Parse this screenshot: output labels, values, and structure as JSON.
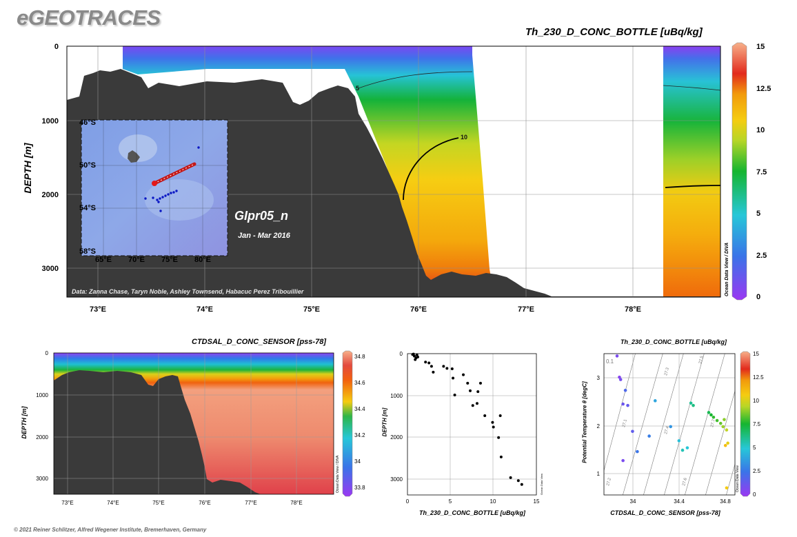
{
  "brand": "eGEOTRACES",
  "footer": "© 2021 Reiner Schlitzer, Alfred Wegener Institute, Bremerhaven, Germany",
  "colors": {
    "land": "#3a3a3a",
    "grid": "#9a9a9a"
  },
  "chart_data": [
    {
      "type": "heatmap",
      "title": "Th_230_D_CONC_BOTTLE [uBq/kg]",
      "ylabel": "DEPTH [m]",
      "xlabel": "",
      "x_ticks": [
        "73°E",
        "74°E",
        "75°E",
        "76°E",
        "77°E",
        "78°E"
      ],
      "xlim": [
        72.7,
        78.85
      ],
      "ylim": [
        3400,
        0
      ],
      "y_ticks": [
        "0",
        "1000",
        "2000",
        "3000"
      ],
      "colorbar": {
        "ticks": [
          "15",
          "12.5",
          "10",
          "7.5",
          "5",
          "2.5",
          "0"
        ],
        "range": [
          0,
          15
        ],
        "label": "Ocean Data View / DIVA"
      },
      "contours": [
        "5",
        "10"
      ],
      "section_label": "GIpr05_n",
      "section_dates": "Jan - Mar 2016",
      "credits": "Data: Zanna Chase, Taryn Noble, Ashley Townsend, Habacuc Perez Tribouillier",
      "inset_map": {
        "lat_ticks": [
          "46°S",
          "50°S",
          "54°S",
          "58°S"
        ],
        "lon_ticks": [
          "65°E",
          "70°E",
          "75°E",
          "80°E"
        ]
      }
    },
    {
      "type": "heatmap",
      "title": "CTDSAL_D_CONC_SENSOR [pss-78]",
      "ylabel": "DEPTH [m]",
      "x_ticks": [
        "73°E",
        "74°E",
        "75°E",
        "76°E",
        "77°E",
        "78°E"
      ],
      "y_ticks": [
        "0",
        "1000",
        "2000",
        "3000"
      ],
      "colorbar": {
        "ticks": [
          "34.8",
          "34.6",
          "34.4",
          "34.2",
          "34",
          "33.8"
        ],
        "range": [
          33.7,
          34.85
        ],
        "label": "Ocean Data View / DIVA"
      }
    },
    {
      "type": "scatter",
      "xlabel": "Th_230_D_CONC_BOTTLE [uBq/kg]",
      "ylabel": "DEPTH [m]",
      "xlim": [
        0,
        15
      ],
      "ylim": [
        3350,
        0
      ],
      "x_ticks": [
        "0",
        "5",
        "10",
        "15"
      ],
      "y_ticks": [
        "0",
        "1000",
        "2000",
        "3000"
      ],
      "side_label": "Ocean Data View",
      "points": [
        {
          "x": 0.6,
          "y": 20
        },
        {
          "x": 0.8,
          "y": 60
        },
        {
          "x": 1.0,
          "y": 100
        },
        {
          "x": 1.1,
          "y": 30
        },
        {
          "x": 0.9,
          "y": 140
        },
        {
          "x": 0.7,
          "y": 10
        },
        {
          "x": 1.2,
          "y": 80
        },
        {
          "x": 2.1,
          "y": 200
        },
        {
          "x": 2.5,
          "y": 220
        },
        {
          "x": 2.8,
          "y": 300
        },
        {
          "x": 3.0,
          "y": 440
        },
        {
          "x": 4.2,
          "y": 300
        },
        {
          "x": 4.6,
          "y": 350
        },
        {
          "x": 5.2,
          "y": 360
        },
        {
          "x": 5.3,
          "y": 580
        },
        {
          "x": 6.5,
          "y": 500
        },
        {
          "x": 7.0,
          "y": 700
        },
        {
          "x": 7.3,
          "y": 880
        },
        {
          "x": 8.2,
          "y": 900
        },
        {
          "x": 8.5,
          "y": 700
        },
        {
          "x": 5.5,
          "y": 980
        },
        {
          "x": 7.6,
          "y": 1230
        },
        {
          "x": 8.1,
          "y": 1180
        },
        {
          "x": 9.0,
          "y": 1470
        },
        {
          "x": 9.9,
          "y": 1630
        },
        {
          "x": 10.0,
          "y": 1740
        },
        {
          "x": 10.8,
          "y": 1470
        },
        {
          "x": 10.6,
          "y": 1990
        },
        {
          "x": 10.9,
          "y": 2450
        },
        {
          "x": 12.0,
          "y": 2940
        },
        {
          "x": 12.9,
          "y": 3010
        },
        {
          "x": 13.3,
          "y": 3100
        }
      ]
    },
    {
      "type": "scatter",
      "title": "Th_230_D_CONC_BOTTLE [uBq/kg]",
      "xlabel": "CTDSAL_D_CONC_SENSOR [pss-78]",
      "ylabel": "Potential Temperature θ [degC]",
      "xlim": [
        33.72,
        34.82
      ],
      "ylim": [
        0.6,
        3.6
      ],
      "x_ticks": [
        "34",
        "34.4",
        "34.8"
      ],
      "y_ticks": [
        "1",
        "2",
        "3"
      ],
      "isopycnals": [
        "27.1",
        "27.2",
        "27.3",
        "27.4",
        "27.5",
        "27.6",
        "27.7"
      ],
      "corner_label": "0.1",
      "colorbar": {
        "ticks": [
          "15",
          "12.5",
          "10",
          "7.5",
          "5",
          "2.5",
          "0"
        ],
        "range": [
          0,
          15
        ],
        "label": "Ocean Data View"
      },
      "points": [
        {
          "s": 33.83,
          "t": 3.55,
          "v": 0.8
        },
        {
          "s": 33.85,
          "t": 3.1,
          "v": 0.5
        },
        {
          "s": 33.86,
          "t": 3.05,
          "v": 0.9
        },
        {
          "s": 33.9,
          "t": 2.82,
          "v": 2.0
        },
        {
          "s": 33.88,
          "t": 2.53,
          "v": 1.2
        },
        {
          "s": 33.92,
          "t": 2.5,
          "v": 1.4
        },
        {
          "s": 33.96,
          "t": 1.95,
          "v": 1.5
        },
        {
          "s": 33.88,
          "t": 1.33,
          "v": 0.8
        },
        {
          "s": 34.0,
          "t": 1.52,
          "v": 2.5
        },
        {
          "s": 34.1,
          "t": 1.85,
          "v": 2.8
        },
        {
          "s": 34.15,
          "t": 2.6,
          "v": 4.0
        },
        {
          "s": 34.28,
          "t": 2.05,
          "v": 3.5
        },
        {
          "s": 34.35,
          "t": 1.75,
          "v": 4.8
        },
        {
          "s": 34.38,
          "t": 1.55,
          "v": 5.5
        },
        {
          "s": 34.45,
          "t": 2.55,
          "v": 6.0
        },
        {
          "s": 34.47,
          "t": 2.5,
          "v": 6.3
        },
        {
          "s": 34.42,
          "t": 1.6,
          "v": 5.0
        },
        {
          "s": 34.6,
          "t": 2.35,
          "v": 7.0
        },
        {
          "s": 34.62,
          "t": 2.3,
          "v": 7.5
        },
        {
          "s": 34.67,
          "t": 2.18,
          "v": 8.0
        },
        {
          "s": 34.7,
          "t": 2.12,
          "v": 8.4
        },
        {
          "s": 34.72,
          "t": 2.05,
          "v": 9.0
        },
        {
          "s": 34.75,
          "t": 1.98,
          "v": 9.5
        },
        {
          "s": 34.76,
          "t": 1.7,
          "v": 10.2
        },
        {
          "s": 34.74,
          "t": 1.65,
          "v": 11.0
        },
        {
          "s": 34.75,
          "t": 0.75,
          "v": 10.5
        },
        {
          "s": 34.73,
          "t": 2.2,
          "v": 8.8
        },
        {
          "s": 34.64,
          "t": 2.25,
          "v": 7.8
        }
      ]
    }
  ]
}
